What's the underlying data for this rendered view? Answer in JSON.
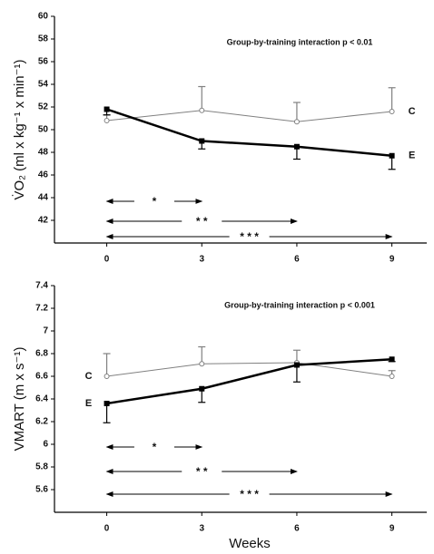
{
  "chart_data": [
    {
      "type": "line",
      "y_label": "V̇O₂ (ml x kg⁻¹ x min⁻¹)",
      "annotation": "Group-by-training interaction p < 0.01",
      "x": [
        0,
        3,
        6,
        9
      ],
      "xticks": [
        0,
        3,
        6,
        9
      ],
      "xlim": [
        -1.65,
        10.1
      ],
      "ylim": [
        40,
        60
      ],
      "yticks": [
        42,
        44,
        46,
        48,
        50,
        52,
        54,
        56,
        58,
        60
      ],
      "series": [
        {
          "name": "C",
          "color": "#808080",
          "marker": "circle",
          "line_width": 1,
          "values": [
            50.8,
            51.7,
            50.7,
            51.6
          ],
          "errors": [
            0.5,
            2.1,
            1.7,
            2.1
          ],
          "error_side": "up",
          "label_side": "right"
        },
        {
          "name": "E",
          "color": "#000000",
          "marker": "square",
          "line_width": 2.5,
          "values": [
            51.8,
            49.0,
            48.5,
            47.7
          ],
          "errors": [
            0.5,
            0.7,
            1.1,
            1.2
          ],
          "error_side": "down",
          "label_side": "right"
        }
      ],
      "brackets": [
        {
          "label": "*",
          "from": 0,
          "to": 3
        },
        {
          "label": "* *",
          "from": 0,
          "to": 6
        },
        {
          "label": "* * *",
          "from": 0,
          "to": 9
        }
      ]
    },
    {
      "type": "line",
      "y_label": "VMART (m x s⁻¹)",
      "x_label": "Weeks",
      "annotation": "Group-by-training interaction p < 0.001",
      "x": [
        0,
        3,
        6,
        9
      ],
      "xticks": [
        0,
        3,
        6,
        9
      ],
      "xlim": [
        -1.65,
        10.1
      ],
      "ylim": [
        5.4,
        7.4
      ],
      "yticks": [
        5.6,
        5.8,
        6,
        6.2,
        6.4,
        6.6,
        6.8,
        7,
        7.2,
        7.4
      ],
      "series": [
        {
          "name": "C",
          "color": "#808080",
          "marker": "circle",
          "line_width": 1,
          "values": [
            6.6,
            6.71,
            6.72,
            6.6
          ],
          "errors": [
            0.2,
            0.15,
            0.11,
            0.05
          ],
          "error_side": "up",
          "label_side": "left"
        },
        {
          "name": "E",
          "color": "#000000",
          "marker": "square",
          "line_width": 2.5,
          "values": [
            6.36,
            6.49,
            6.7,
            6.75
          ],
          "errors": [
            0.17,
            0.12,
            0.15,
            0.02
          ],
          "error_side": "down",
          "label_side": "left"
        }
      ],
      "brackets": [
        {
          "label": "*",
          "from": 0,
          "to": 3
        },
        {
          "label": "* *",
          "from": 0,
          "to": 6
        },
        {
          "label": "* * *",
          "from": 0,
          "to": 9
        }
      ]
    }
  ]
}
